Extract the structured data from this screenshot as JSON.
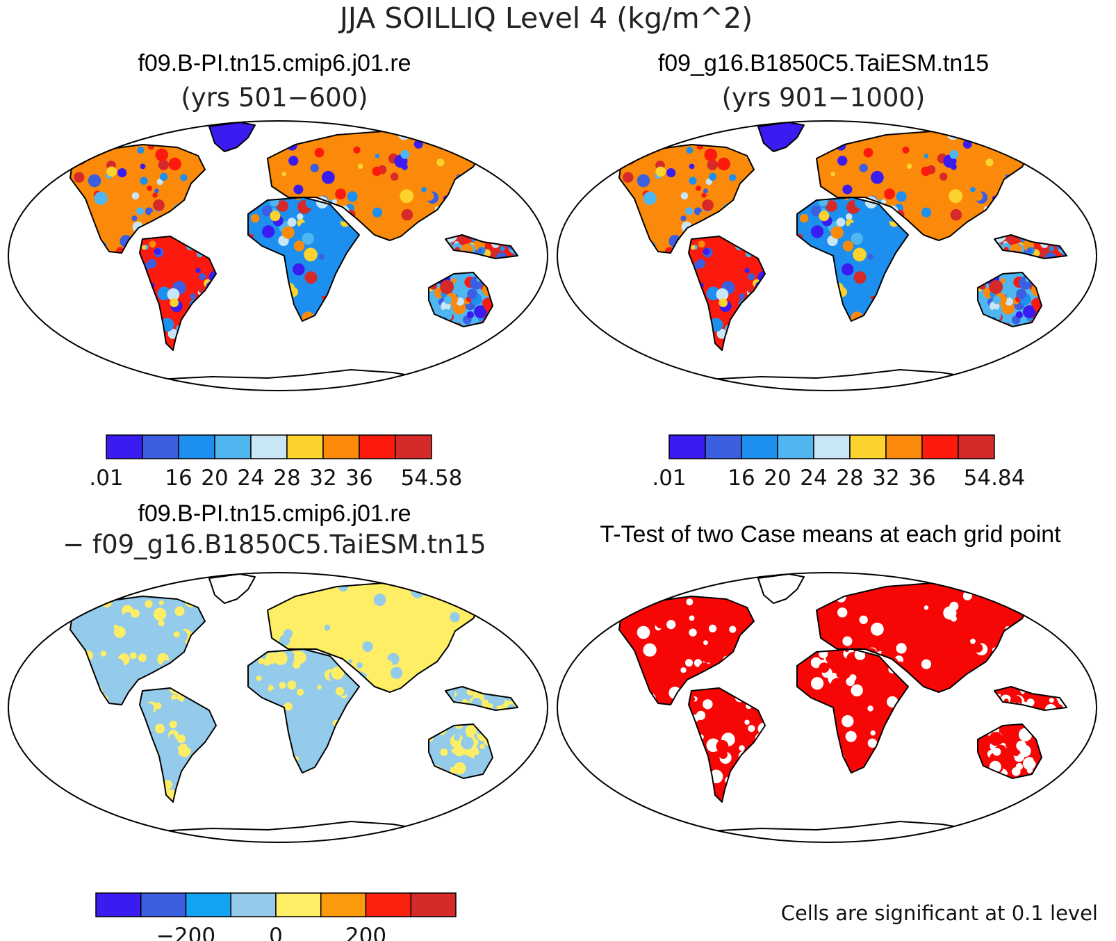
{
  "figure": {
    "title": "JJA SOILLIQ Level 4 (kg/m^2)"
  },
  "colors": {
    "levels9": [
      "#3a1cf0",
      "#3b5fe0",
      "#1d8fee",
      "#4fb6f0",
      "#c8e6f5",
      "#fbd32c",
      "#fb8a0a",
      "#fb1a0d",
      "#d62a2a"
    ],
    "levels8": [
      "#3a1cf0",
      "#3b5fe0",
      "#14a3f3",
      "#94cbea",
      "#fdee66",
      "#fb9a0a",
      "#fb2310",
      "#d62a2a"
    ],
    "significant": "#f70606"
  },
  "panels": {
    "case1": {
      "title_line1": "f09.B-PI.tn15.cmip6.j01.re",
      "title_line2": "(yrs 501−600)",
      "colorbar": {
        "ticks": [
          ".01",
          "16",
          "20",
          "24",
          "28",
          "32",
          "36",
          "54.58"
        ]
      }
    },
    "case2": {
      "title_line1": "f09_g16.B1850C5.TaiESM.tn15",
      "title_line2": "(yrs 901−1000)",
      "colorbar": {
        "ticks": [
          ".01",
          "16",
          "20",
          "24",
          "28",
          "32",
          "36",
          "54.84"
        ]
      }
    },
    "diff": {
      "title_line1": "f09.B-PI.tn15.cmip6.j01.re",
      "title_line2": "− f09_g16.B1850C5.TaiESM.tn15",
      "colorbar": {
        "ticks": [
          "−200",
          "0",
          "200"
        ]
      }
    },
    "ttest": {
      "title_line1": "T-Test of two Case means at each grid point",
      "note": "Cells are significant at 0.1 level"
    }
  }
}
